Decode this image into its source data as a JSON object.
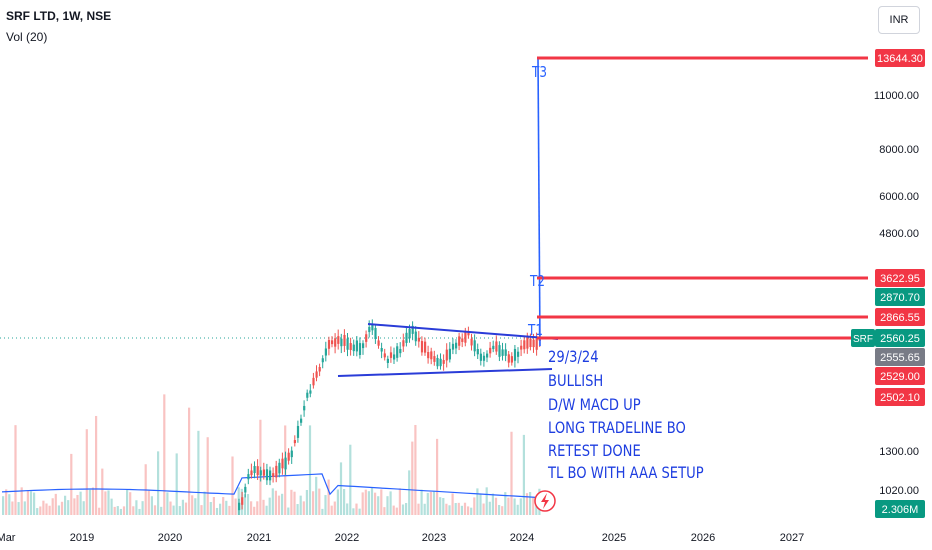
{
  "header": {
    "title": "SRF LTD, 1W, NSE",
    "volume_label": "Vol (20)",
    "currency_button": "INR"
  },
  "colors": {
    "bull": "#26a69a",
    "bear": "#ef5350",
    "target_line": "#f23645",
    "trend_line": "#2a3cd8",
    "target_move": "#2962ff",
    "vol_ma": "#2962ff"
  },
  "chart_data": {
    "type": "candlestick",
    "title": "SRF LTD, 1W, NSE",
    "y_scale": "log",
    "x_tick_labels": [
      "Mar",
      "2019",
      "2020",
      "2021",
      "2022",
      "2023",
      "2024",
      "2025",
      "2026",
      "2027"
    ],
    "y_tick_labels": [
      "11000.00",
      "8000.00",
      "6000.00",
      "4800.00",
      "1300.00",
      "1020.00"
    ],
    "price_tags": [
      {
        "label": "13644.30",
        "value": 13644.3,
        "color": "#f23645"
      },
      {
        "label": "3622.95",
        "value": 3622.95,
        "color": "#f23645"
      },
      {
        "label": "2870.70",
        "value": 2870.7,
        "color": "#089981"
      },
      {
        "label": "2866.55",
        "value": 2866.55,
        "color": "#f23645"
      },
      {
        "label": "2560.25",
        "value": 2560.25,
        "color": "#089981"
      },
      {
        "label": "2555.65",
        "value": 2555.65,
        "color": "#787b86"
      },
      {
        "label": "2529.00",
        "value": 2529.0,
        "color": "#f23645"
      },
      {
        "label": "2502.10",
        "value": 2502.1,
        "color": "#f23645"
      }
    ],
    "symbol_tag": "SRF",
    "volume_tag": "2.306M",
    "targets": [
      {
        "label": "T1",
        "value": 2560
      },
      {
        "label": "T2",
        "value": 3622.95
      },
      {
        "label": "T3",
        "value": 13644.3
      }
    ],
    "price_path": [
      [
        "Mar 2018",
        1010
      ],
      [
        "Jan 2019",
        1040
      ],
      [
        "Jan 2020",
        1060
      ],
      [
        "Jan 2021",
        1150
      ],
      [
        "Jul 2021",
        1700
      ],
      [
        "Dec 2021",
        2500
      ],
      [
        "Apr 2022",
        2800
      ],
      [
        "Jul 2022",
        2250
      ],
      [
        "Jan 2023",
        2300
      ],
      [
        "Jul 2023",
        2400
      ],
      [
        "Jan 2024",
        2250
      ],
      [
        "Mar 2024",
        2560
      ]
    ]
  },
  "annotations": [
    "29/3/24",
    "BULLISH",
    "D/W MACD UP",
    "LONG TRADELINE BO",
    "RETEST DONE",
    "TL BO WITH AAA SETUP"
  ]
}
